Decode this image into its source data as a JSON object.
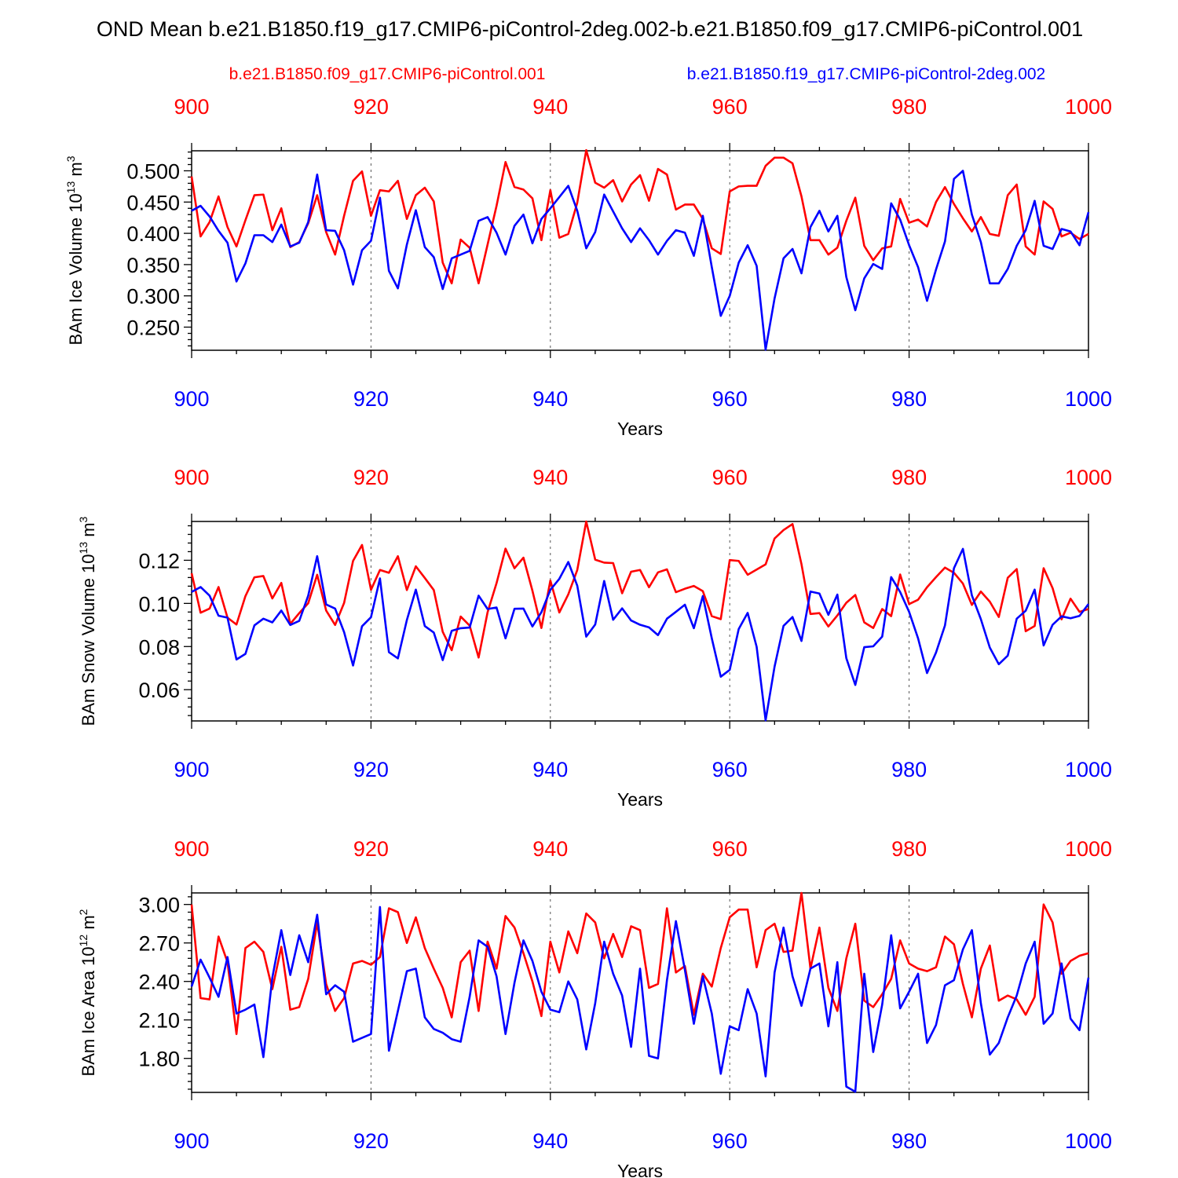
{
  "colors": {
    "red": "#ff0000",
    "blue": "#0000ff",
    "axis": "#000000",
    "grid": "#555555"
  },
  "chart_data": {
    "type": "line",
    "title": "OND Mean b.e21.B1850.f19_g17.CMIP6-piControl-2deg.002-b.e21.B1850.f09_g17.CMIP6-piControl.001",
    "legend": {
      "left": "b.e21.B1850.f09_g17.CMIP6-piControl.001",
      "right": "b.e21.B1850.f19_g17.CMIP6-piControl-2deg.002"
    },
    "x_start": 900,
    "x_end": 1000,
    "x_ticks": [
      "900",
      "920",
      "940",
      "960",
      "980",
      "1000"
    ],
    "xlabel": "Years",
    "panels": [
      {
        "ylabel": "BAm Ice Volume 10",
        "ylabel_exp": "13",
        "ylabel_unit": " m",
        "ylabel_unit_exp": "3",
        "ylim": [
          0.213,
          0.532
        ],
        "yticks": [
          "0.250",
          "0.300",
          "0.350",
          "0.400",
          "0.450",
          "0.500"
        ],
        "series": [
          {
            "name": "b.e21.B1850.f09_g17.CMIP6-piControl.001",
            "color": "#ff0000",
            "values": [
              0.491,
              0.395,
              0.418,
              0.459,
              0.41,
              0.379,
              0.421,
              0.461,
              0.462,
              0.405,
              0.44,
              0.378,
              0.386,
              0.416,
              0.461,
              0.402,
              0.366,
              0.428,
              0.484,
              0.499,
              0.428,
              0.469,
              0.467,
              0.484,
              0.423,
              0.461,
              0.473,
              0.451,
              0.353,
              0.32,
              0.39,
              0.377,
              0.32,
              0.382,
              0.444,
              0.514,
              0.474,
              0.47,
              0.456,
              0.389,
              0.469,
              0.393,
              0.399,
              0.449,
              0.533,
              0.481,
              0.473,
              0.485,
              0.451,
              0.478,
              0.493,
              0.452,
              0.503,
              0.494,
              0.438,
              0.446,
              0.446,
              0.423,
              0.376,
              0.367,
              0.467,
              0.475,
              0.476,
              0.476,
              0.508,
              0.521,
              0.521,
              0.512,
              0.459,
              0.389,
              0.389,
              0.366,
              0.377,
              0.42,
              0.457,
              0.38,
              0.357,
              0.376,
              0.379,
              0.455,
              0.417,
              0.422,
              0.411,
              0.45,
              0.474,
              0.447,
              0.424,
              0.403,
              0.426,
              0.399,
              0.396,
              0.461,
              0.478,
              0.379,
              0.366,
              0.451,
              0.439,
              0.395,
              0.401,
              0.391,
              0.399
            ]
          },
          {
            "name": "b.e21.B1850.f19_g17.CMIP6-piControl-2deg.002",
            "color": "#0000ff",
            "values": [
              0.436,
              0.444,
              0.427,
              0.404,
              0.385,
              0.323,
              0.352,
              0.397,
              0.397,
              0.386,
              0.414,
              0.379,
              0.385,
              0.418,
              0.494,
              0.405,
              0.404,
              0.373,
              0.318,
              0.373,
              0.388,
              0.457,
              0.34,
              0.312,
              0.382,
              0.437,
              0.378,
              0.362,
              0.311,
              0.36,
              0.366,
              0.372,
              0.42,
              0.426,
              0.401,
              0.366,
              0.412,
              0.43,
              0.384,
              0.423,
              0.44,
              0.458,
              0.476,
              0.436,
              0.376,
              0.402,
              0.462,
              0.435,
              0.408,
              0.386,
              0.408,
              0.389,
              0.366,
              0.388,
              0.405,
              0.401,
              0.364,
              0.428,
              0.346,
              0.268,
              0.3,
              0.353,
              0.381,
              0.348,
              0.214,
              0.296,
              0.36,
              0.375,
              0.336,
              0.41,
              0.436,
              0.403,
              0.428,
              0.33,
              0.277,
              0.328,
              0.351,
              0.343,
              0.448,
              0.422,
              0.381,
              0.346,
              0.292,
              0.342,
              0.387,
              0.487,
              0.5,
              0.43,
              0.386,
              0.32,
              0.32,
              0.343,
              0.38,
              0.405,
              0.452,
              0.38,
              0.375,
              0.407,
              0.403,
              0.381,
              0.434
            ]
          }
        ]
      },
      {
        "ylabel": "BAm Snow Volume 10",
        "ylabel_exp": "13",
        "ylabel_unit": " m",
        "ylabel_unit_exp": "3",
        "ylim": [
          0.0455,
          0.138
        ],
        "yticks": [
          "0.06",
          "0.08",
          "0.10",
          "0.12"
        ],
        "series": [
          {
            "name": "b.e21.B1850.f09_g17.CMIP6-piControl.001",
            "color": "#ff0000",
            "values": [
              0.114,
              0.0957,
              0.0976,
              0.1076,
              0.0934,
              0.0902,
              0.1034,
              0.1121,
              0.1127,
              0.1023,
              0.1095,
              0.0905,
              0.0955,
              0.1001,
              0.1133,
              0.0967,
              0.09,
              0.1002,
              0.1197,
              0.1271,
              0.1063,
              0.1155,
              0.1142,
              0.1219,
              0.1062,
              0.1172,
              0.1118,
              0.1062,
              0.0868,
              0.0783,
              0.0939,
              0.0897,
              0.0749,
              0.0959,
              0.1094,
              0.1254,
              0.1163,
              0.1212,
              0.1059,
              0.0886,
              0.1106,
              0.0958,
              0.1042,
              0.1155,
              0.138,
              0.1203,
              0.1189,
              0.1187,
              0.1047,
              0.1147,
              0.1155,
              0.1075,
              0.1144,
              0.1158,
              0.1052,
              0.1068,
              0.1081,
              0.1057,
              0.0941,
              0.0927,
              0.1201,
              0.1197,
              0.1133,
              0.1157,
              0.1181,
              0.1301,
              0.134,
              0.1368,
              0.1182,
              0.0951,
              0.0955,
              0.0893,
              0.0944,
              0.1003,
              0.1039,
              0.0912,
              0.0886,
              0.0974,
              0.0941,
              0.1134,
              0.0997,
              0.1017,
              0.1075,
              0.1122,
              0.1166,
              0.1142,
              0.1092,
              0.0993,
              0.1055,
              0.1008,
              0.0937,
              0.1119,
              0.1159,
              0.0871,
              0.0895,
              0.1163,
              0.1071,
              0.0926,
              0.1022,
              0.0961,
              0.0974
            ]
          },
          {
            "name": "b.e21.B1850.f19_g17.CMIP6-piControl-2deg.002",
            "color": "#0000ff",
            "values": [
              0.1053,
              0.1076,
              0.1036,
              0.0943,
              0.0934,
              0.074,
              0.0766,
              0.0898,
              0.0929,
              0.0912,
              0.0967,
              0.09,
              0.0919,
              0.1036,
              0.1219,
              0.0995,
              0.0976,
              0.0867,
              0.0712,
              0.0894,
              0.0936,
              0.1116,
              0.0774,
              0.0745,
              0.0923,
              0.1064,
              0.0895,
              0.0865,
              0.0737,
              0.0873,
              0.0885,
              0.0888,
              0.1036,
              0.0974,
              0.0981,
              0.0838,
              0.0975,
              0.0976,
              0.0893,
              0.0959,
              0.1063,
              0.1114,
              0.1192,
              0.1082,
              0.0846,
              0.0902,
              0.1104,
              0.0924,
              0.0977,
              0.0921,
              0.0901,
              0.0889,
              0.0853,
              0.0929,
              0.0961,
              0.0994,
              0.0885,
              0.1034,
              0.0838,
              0.066,
              0.0692,
              0.0881,
              0.0956,
              0.0799,
              0.0458,
              0.0707,
              0.0896,
              0.0937,
              0.0826,
              0.1055,
              0.1046,
              0.0947,
              0.1041,
              0.0746,
              0.0622,
              0.0797,
              0.0801,
              0.0846,
              0.1122,
              0.1053,
              0.0961,
              0.0838,
              0.0677,
              0.0772,
              0.0898,
              0.1163,
              0.1253,
              0.1037,
              0.0927,
              0.0795,
              0.0718,
              0.0758,
              0.0929,
              0.0966,
              0.1064,
              0.0805,
              0.0901,
              0.094,
              0.0931,
              0.0942,
              0.0997
            ]
          }
        ]
      },
      {
        "ylabel": "BAm Ice Area 10",
        "ylabel_exp": "12",
        "ylabel_unit": " m",
        "ylabel_unit_exp": "2",
        "ylim": [
          1.535,
          3.09
        ],
        "yticks": [
          "1.80",
          "2.10",
          "2.40",
          "2.70",
          "3.00"
        ],
        "series": [
          {
            "name": "b.e21.B1850.f09_g17.CMIP6-piControl.001",
            "color": "#ff0000",
            "values": [
              3.0,
              2.27,
              2.26,
              2.75,
              2.55,
              1.99,
              2.66,
              2.71,
              2.63,
              2.34,
              2.67,
              2.18,
              2.2,
              2.42,
              2.86,
              2.38,
              2.17,
              2.27,
              2.54,
              2.56,
              2.53,
              2.59,
              2.97,
              2.94,
              2.7,
              2.9,
              2.66,
              2.5,
              2.35,
              2.12,
              2.55,
              2.64,
              2.17,
              2.71,
              2.5,
              2.91,
              2.82,
              2.62,
              2.4,
              2.13,
              2.71,
              2.47,
              2.79,
              2.62,
              2.93,
              2.86,
              2.58,
              2.77,
              2.59,
              2.83,
              2.8,
              2.35,
              2.38,
              2.97,
              2.47,
              2.52,
              2.14,
              2.46,
              2.36,
              2.66,
              2.9,
              2.96,
              2.96,
              2.51,
              2.8,
              2.85,
              2.63,
              2.64,
              3.09,
              2.5,
              2.82,
              2.35,
              2.17,
              2.58,
              2.85,
              2.25,
              2.2,
              2.3,
              2.42,
              2.72,
              2.54,
              2.5,
              2.48,
              2.51,
              2.75,
              2.69,
              2.38,
              2.12,
              2.5,
              2.68,
              2.25,
              2.29,
              2.26,
              2.14,
              2.28,
              3.0,
              2.86,
              2.46,
              2.56,
              2.6,
              2.62
            ]
          },
          {
            "name": "b.e21.B1850.f19_g17.CMIP6-piControl-2deg.002",
            "color": "#0000ff",
            "values": [
              2.36,
              2.57,
              2.43,
              2.28,
              2.59,
              2.15,
              2.18,
              2.22,
              1.81,
              2.43,
              2.8,
              2.45,
              2.76,
              2.55,
              2.92,
              2.3,
              2.37,
              2.32,
              1.93,
              1.96,
              1.99,
              2.98,
              1.86,
              2.17,
              2.48,
              2.5,
              2.12,
              2.03,
              2.0,
              1.95,
              1.93,
              2.28,
              2.72,
              2.67,
              2.44,
              1.99,
              2.39,
              2.72,
              2.56,
              2.32,
              2.18,
              2.16,
              2.4,
              2.26,
              1.87,
              2.23,
              2.71,
              2.46,
              2.29,
              1.89,
              2.5,
              1.82,
              1.8,
              2.41,
              2.87,
              2.49,
              2.07,
              2.44,
              2.15,
              1.68,
              2.05,
              2.02,
              2.34,
              2.15,
              1.66,
              2.47,
              2.82,
              2.44,
              2.21,
              2.5,
              2.54,
              2.05,
              2.55,
              1.58,
              1.54,
              2.46,
              1.85,
              2.22,
              2.76,
              2.19,
              2.32,
              2.46,
              1.92,
              2.06,
              2.37,
              2.41,
              2.65,
              2.8,
              2.23,
              1.83,
              1.92,
              2.12,
              2.29,
              2.54,
              2.71,
              2.07,
              2.15,
              2.54,
              2.11,
              2.02,
              2.43
            ]
          }
        ]
      }
    ]
  }
}
